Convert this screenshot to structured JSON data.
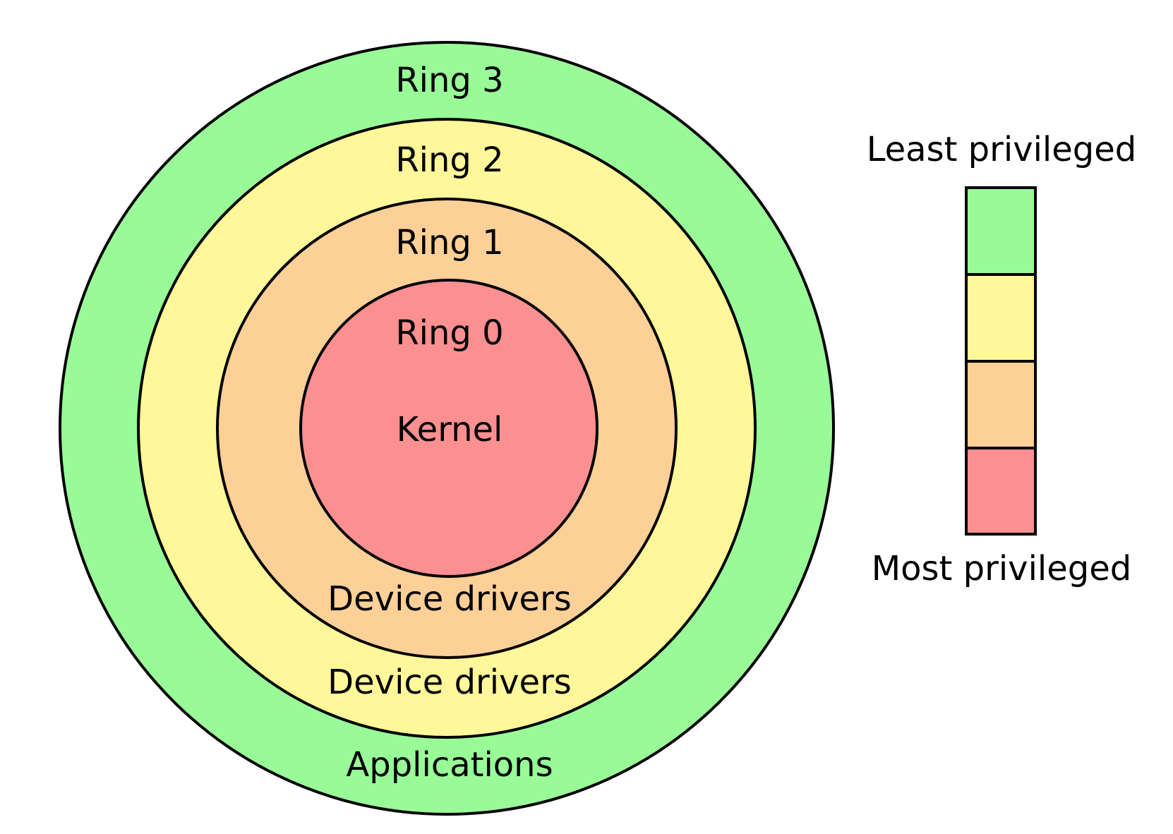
{
  "rings": [
    {
      "id": "ring3",
      "name": "Ring 3",
      "role": "Applications",
      "color": "#98fb98"
    },
    {
      "id": "ring2",
      "name": "Ring 2",
      "role": "Device drivers",
      "color": "#fff799"
    },
    {
      "id": "ring1",
      "name": "Ring 1",
      "role": "Device drivers",
      "color": "#fdd097"
    },
    {
      "id": "ring0",
      "name": "Ring 0",
      "role": "Kernel",
      "color": "#fc9090"
    }
  ],
  "legend": {
    "top_label": "Least privileged",
    "bottom_label": "Most privileged"
  },
  "stroke_color": "#000000"
}
